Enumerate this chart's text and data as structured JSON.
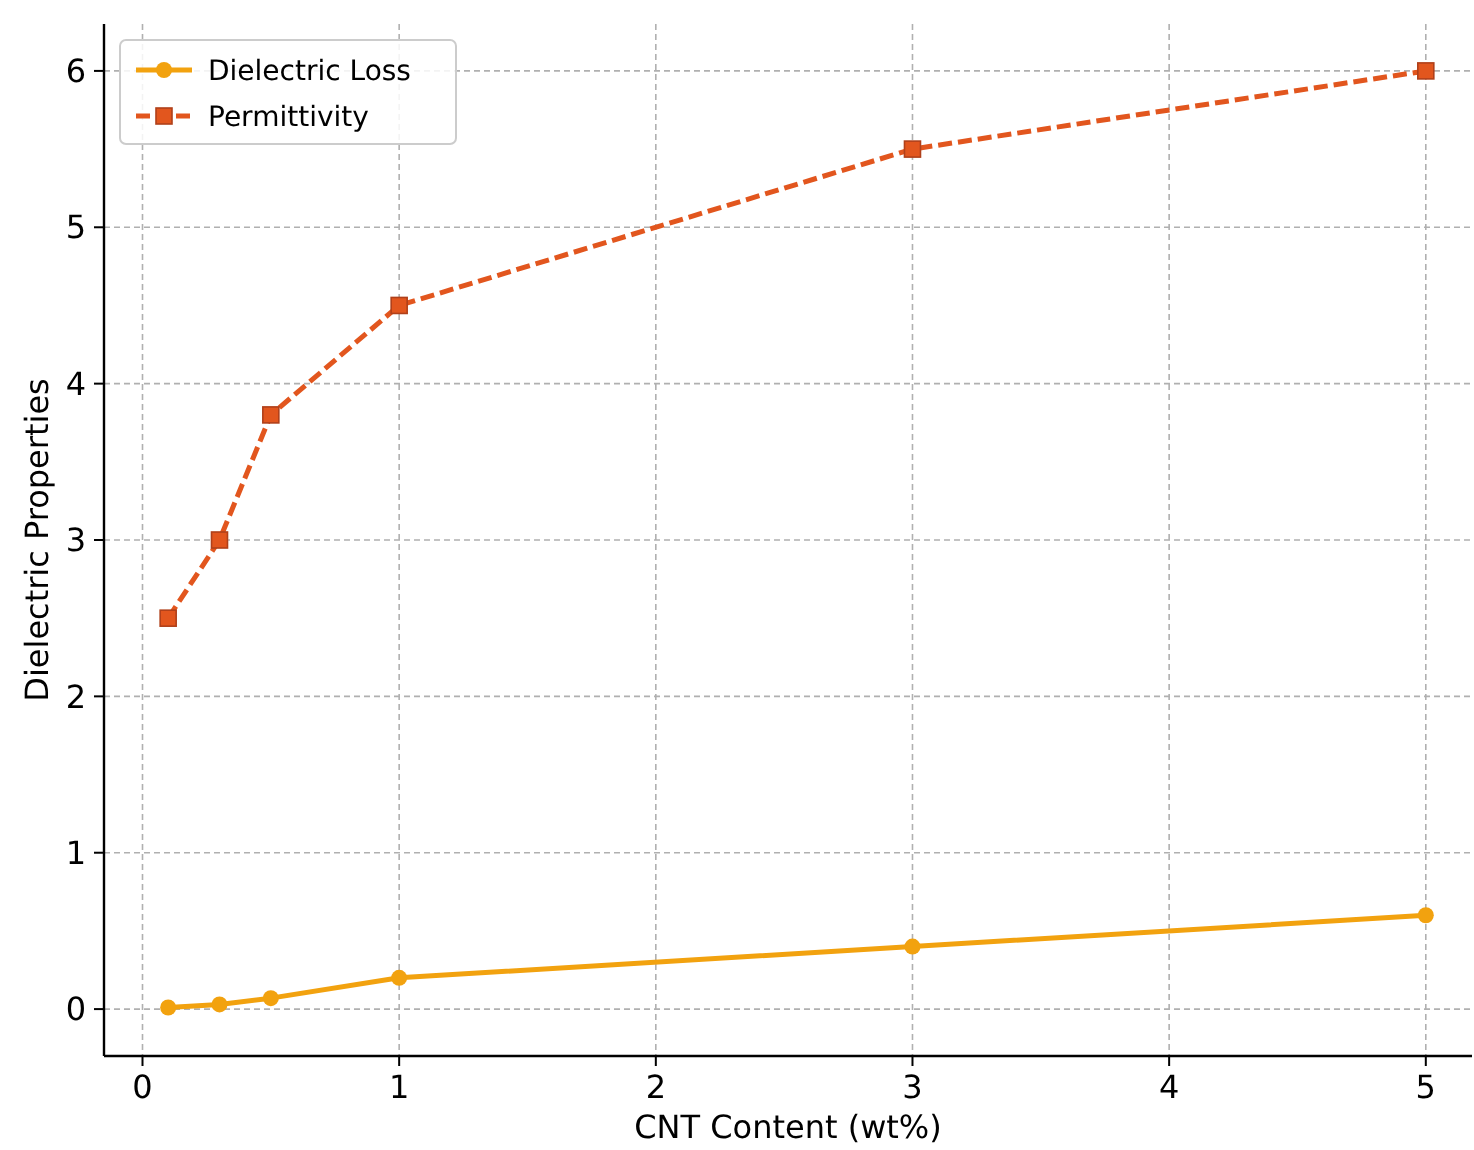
{
  "chart_data": {
    "type": "line",
    "xlabel": "CNT Content (wt%)",
    "ylabel": "Dielectric Properties",
    "x": [
      0.1,
      0.3,
      0.5,
      1,
      3,
      5
    ],
    "series": [
      {
        "name": "Dielectric Loss",
        "color": "#f2a20f",
        "values": [
          0.01,
          0.03,
          0.07,
          0.2,
          0.4,
          0.6
        ],
        "marker": "circle",
        "line_style": "solid"
      },
      {
        "name": "Permittivity",
        "color": "#e2561e",
        "values": [
          2.5,
          3.0,
          3.8,
          4.5,
          5.5,
          6.0
        ],
        "marker": "square",
        "line_style": "dashed"
      }
    ],
    "xlim": [
      -0.15,
      5.18
    ],
    "xticks": [
      0,
      1,
      2,
      3,
      4,
      5
    ],
    "ylim": [
      -0.3,
      6.3
    ],
    "yticks": [
      0,
      1,
      2,
      3,
      4,
      5,
      6
    ],
    "grid": true,
    "legend": "top left"
  }
}
